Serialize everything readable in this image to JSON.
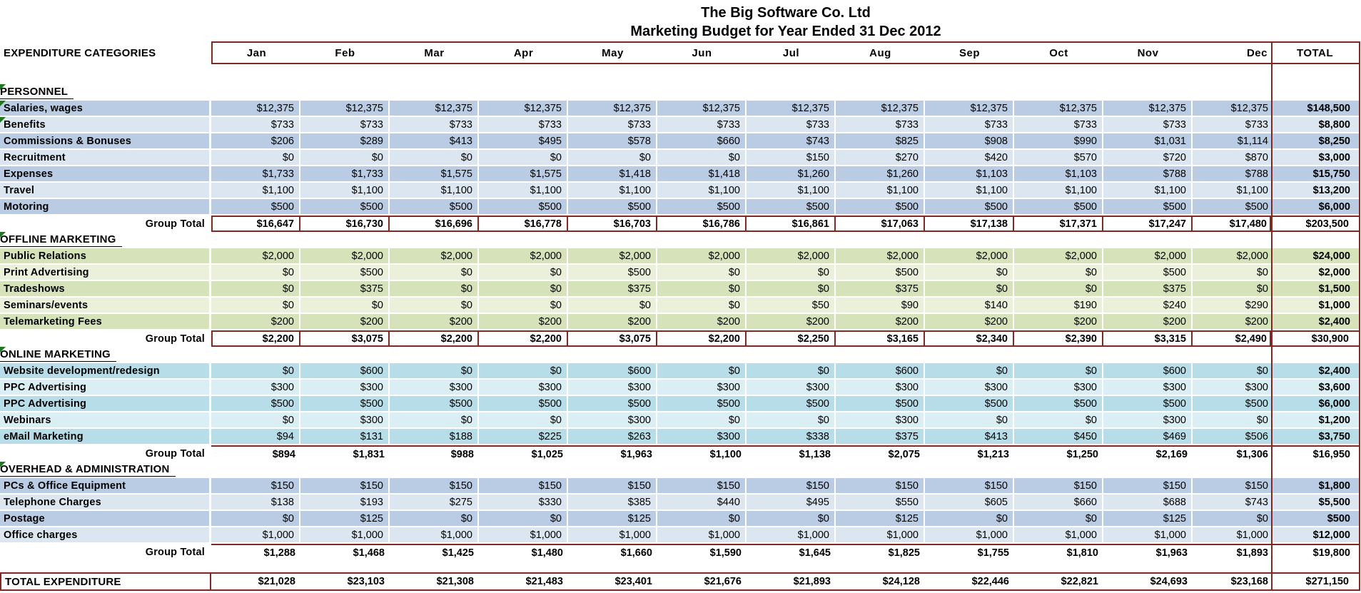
{
  "title": "The Big Software Co. Ltd",
  "subtitle": "Marketing Budget for Year Ended 31 Dec 2012",
  "header": {
    "label": "EXPENDITURE CATEGORIES",
    "months": [
      "Jan",
      "Feb",
      "Mar",
      "Apr",
      "May",
      "Jun",
      "Jul",
      "Aug",
      "Sep",
      "Oct",
      "Nov",
      "Dec"
    ],
    "total_label": "TOTAL"
  },
  "group_total_label": "Group Total",
  "colors": {
    "border_maroon": "#7e2a23",
    "blue_dark": "#b9cce4",
    "blue_light": "#dce6f1",
    "green_dark": "#d6e2ba",
    "green_light": "#eaf0da",
    "aqua_dark": "#b7dee8",
    "aqua_light": "#daeef3",
    "flag_green": "#1f7a1f"
  },
  "sections": [
    {
      "name": "PERSONNEL",
      "palette": "blue",
      "boxed_total": true,
      "flag": true,
      "rows": [
        {
          "label": "Salaries, wages",
          "flag": true,
          "values": [
            "$12,375",
            "$12,375",
            "$12,375",
            "$12,375",
            "$12,375",
            "$12,375",
            "$12,375",
            "$12,375",
            "$12,375",
            "$12,375",
            "$12,375",
            "$12,375"
          ],
          "total": "$148,500"
        },
        {
          "label": "Benefits",
          "flag": true,
          "values": [
            "$733",
            "$733",
            "$733",
            "$733",
            "$733",
            "$733",
            "$733",
            "$733",
            "$733",
            "$733",
            "$733",
            "$733"
          ],
          "total": "$8,800"
        },
        {
          "label": "Commissions & Bonuses",
          "flag": false,
          "values": [
            "$206",
            "$289",
            "$413",
            "$495",
            "$578",
            "$660",
            "$743",
            "$825",
            "$908",
            "$990",
            "$1,031",
            "$1,114"
          ],
          "total": "$8,250"
        },
        {
          "label": "Recruitment",
          "flag": false,
          "values": [
            "$0",
            "$0",
            "$0",
            "$0",
            "$0",
            "$0",
            "$150",
            "$270",
            "$420",
            "$570",
            "$720",
            "$870"
          ],
          "total": "$3,000"
        },
        {
          "label": "Expenses",
          "flag": false,
          "values": [
            "$1,733",
            "$1,733",
            "$1,575",
            "$1,575",
            "$1,418",
            "$1,418",
            "$1,260",
            "$1,260",
            "$1,103",
            "$1,103",
            "$788",
            "$788"
          ],
          "total": "$15,750"
        },
        {
          "label": "Travel",
          "flag": false,
          "values": [
            "$1,100",
            "$1,100",
            "$1,100",
            "$1,100",
            "$1,100",
            "$1,100",
            "$1,100",
            "$1,100",
            "$1,100",
            "$1,100",
            "$1,100",
            "$1,100"
          ],
          "total": "$13,200"
        },
        {
          "label": "Motoring",
          "flag": false,
          "values": [
            "$500",
            "$500",
            "$500",
            "$500",
            "$500",
            "$500",
            "$500",
            "$500",
            "$500",
            "$500",
            "$500",
            "$500"
          ],
          "total": "$6,000"
        }
      ],
      "group_total": {
        "values": [
          "$16,647",
          "$16,730",
          "$16,696",
          "$16,778",
          "$16,703",
          "$16,786",
          "$16,861",
          "$17,063",
          "$17,138",
          "$17,371",
          "$17,247",
          "$17,480"
        ],
        "total": "$203,500"
      }
    },
    {
      "name": "OFFLINE MARKETING",
      "palette": "green",
      "boxed_total": true,
      "flag": true,
      "rows": [
        {
          "label": "Public Relations",
          "flag": false,
          "values": [
            "$2,000",
            "$2,000",
            "$2,000",
            "$2,000",
            "$2,000",
            "$2,000",
            "$2,000",
            "$2,000",
            "$2,000",
            "$2,000",
            "$2,000",
            "$2,000"
          ],
          "total": "$24,000"
        },
        {
          "label": "Print Advertising",
          "flag": false,
          "values": [
            "$0",
            "$500",
            "$0",
            "$0",
            "$500",
            "$0",
            "$0",
            "$500",
            "$0",
            "$0",
            "$500",
            "$0"
          ],
          "total": "$2,000"
        },
        {
          "label": "Tradeshows",
          "flag": false,
          "values": [
            "$0",
            "$375",
            "$0",
            "$0",
            "$375",
            "$0",
            "$0",
            "$375",
            "$0",
            "$0",
            "$375",
            "$0"
          ],
          "total": "$1,500"
        },
        {
          "label": "Seminars/events",
          "flag": false,
          "values": [
            "$0",
            "$0",
            "$0",
            "$0",
            "$0",
            "$0",
            "$50",
            "$90",
            "$140",
            "$190",
            "$240",
            "$290"
          ],
          "total": "$1,000"
        },
        {
          "label": "Telemarketing Fees",
          "flag": false,
          "values": [
            "$200",
            "$200",
            "$200",
            "$200",
            "$200",
            "$200",
            "$200",
            "$200",
            "$200",
            "$200",
            "$200",
            "$200"
          ],
          "total": "$2,400"
        }
      ],
      "group_total": {
        "values": [
          "$2,200",
          "$3,075",
          "$2,200",
          "$2,200",
          "$3,075",
          "$2,200",
          "$2,250",
          "$3,165",
          "$2,340",
          "$2,390",
          "$3,315",
          "$2,490"
        ],
        "total": "$30,900"
      }
    },
    {
      "name": "ONLINE MARKETING",
      "palette": "aqua",
      "boxed_total": false,
      "flag": true,
      "rows": [
        {
          "label": "Website development/redesign",
          "flag": false,
          "values": [
            "$0",
            "$600",
            "$0",
            "$0",
            "$600",
            "$0",
            "$0",
            "$600",
            "$0",
            "$0",
            "$600",
            "$0"
          ],
          "total": "$2,400"
        },
        {
          "label": "PPC Advertising",
          "flag": false,
          "values": [
            "$300",
            "$300",
            "$300",
            "$300",
            "$300",
            "$300",
            "$300",
            "$300",
            "$300",
            "$300",
            "$300",
            "$300"
          ],
          "total": "$3,600"
        },
        {
          "label": "PPC Advertising",
          "flag": false,
          "values": [
            "$500",
            "$500",
            "$500",
            "$500",
            "$500",
            "$500",
            "$500",
            "$500",
            "$500",
            "$500",
            "$500",
            "$500"
          ],
          "total": "$6,000"
        },
        {
          "label": "Webinars",
          "flag": false,
          "values": [
            "$0",
            "$300",
            "$0",
            "$0",
            "$300",
            "$0",
            "$0",
            "$300",
            "$0",
            "$0",
            "$300",
            "$0"
          ],
          "total": "$1,200"
        },
        {
          "label": "eMail Marketing",
          "flag": false,
          "values": [
            "$94",
            "$131",
            "$188",
            "$225",
            "$263",
            "$300",
            "$338",
            "$375",
            "$413",
            "$450",
            "$469",
            "$506"
          ],
          "total": "$3,750"
        }
      ],
      "group_total": {
        "values": [
          "$894",
          "$1,831",
          "$988",
          "$1,025",
          "$1,963",
          "$1,100",
          "$1,138",
          "$2,075",
          "$1,213",
          "$1,250",
          "$2,169",
          "$1,306"
        ],
        "total": "$16,950"
      }
    },
    {
      "name": "OVERHEAD & ADMINISTRATION",
      "palette": "blue",
      "boxed_total": false,
      "flag": true,
      "rows": [
        {
          "label": "PCs & Office Equipment",
          "flag": false,
          "values": [
            "$150",
            "$150",
            "$150",
            "$150",
            "$150",
            "$150",
            "$150",
            "$150",
            "$150",
            "$150",
            "$150",
            "$150"
          ],
          "total": "$1,800"
        },
        {
          "label": "Telephone Charges",
          "flag": false,
          "values": [
            "$138",
            "$193",
            "$275",
            "$330",
            "$385",
            "$440",
            "$495",
            "$550",
            "$605",
            "$660",
            "$688",
            "$743"
          ],
          "total": "$5,500"
        },
        {
          "label": "Postage",
          "flag": false,
          "values": [
            "$0",
            "$125",
            "$0",
            "$0",
            "$125",
            "$0",
            "$0",
            "$125",
            "$0",
            "$0",
            "$125",
            "$0"
          ],
          "total": "$500"
        },
        {
          "label": "Office charges",
          "flag": false,
          "values": [
            "$1,000",
            "$1,000",
            "$1,000",
            "$1,000",
            "$1,000",
            "$1,000",
            "$1,000",
            "$1,000",
            "$1,000",
            "$1,000",
            "$1,000",
            "$1,000"
          ],
          "total": "$12,000"
        }
      ],
      "group_total": {
        "values": [
          "$1,288",
          "$1,468",
          "$1,425",
          "$1,480",
          "$1,660",
          "$1,590",
          "$1,645",
          "$1,825",
          "$1,755",
          "$1,810",
          "$1,963",
          "$1,893"
        ],
        "total": "$19,800"
      }
    }
  ],
  "total_expenditure": {
    "label": "TOTAL EXPENDITURE",
    "values": [
      "$21,028",
      "$23,103",
      "$21,308",
      "$21,483",
      "$23,401",
      "$21,676",
      "$21,893",
      "$24,128",
      "$22,446",
      "$22,821",
      "$24,693",
      "$23,168"
    ],
    "total": "$271,150"
  }
}
